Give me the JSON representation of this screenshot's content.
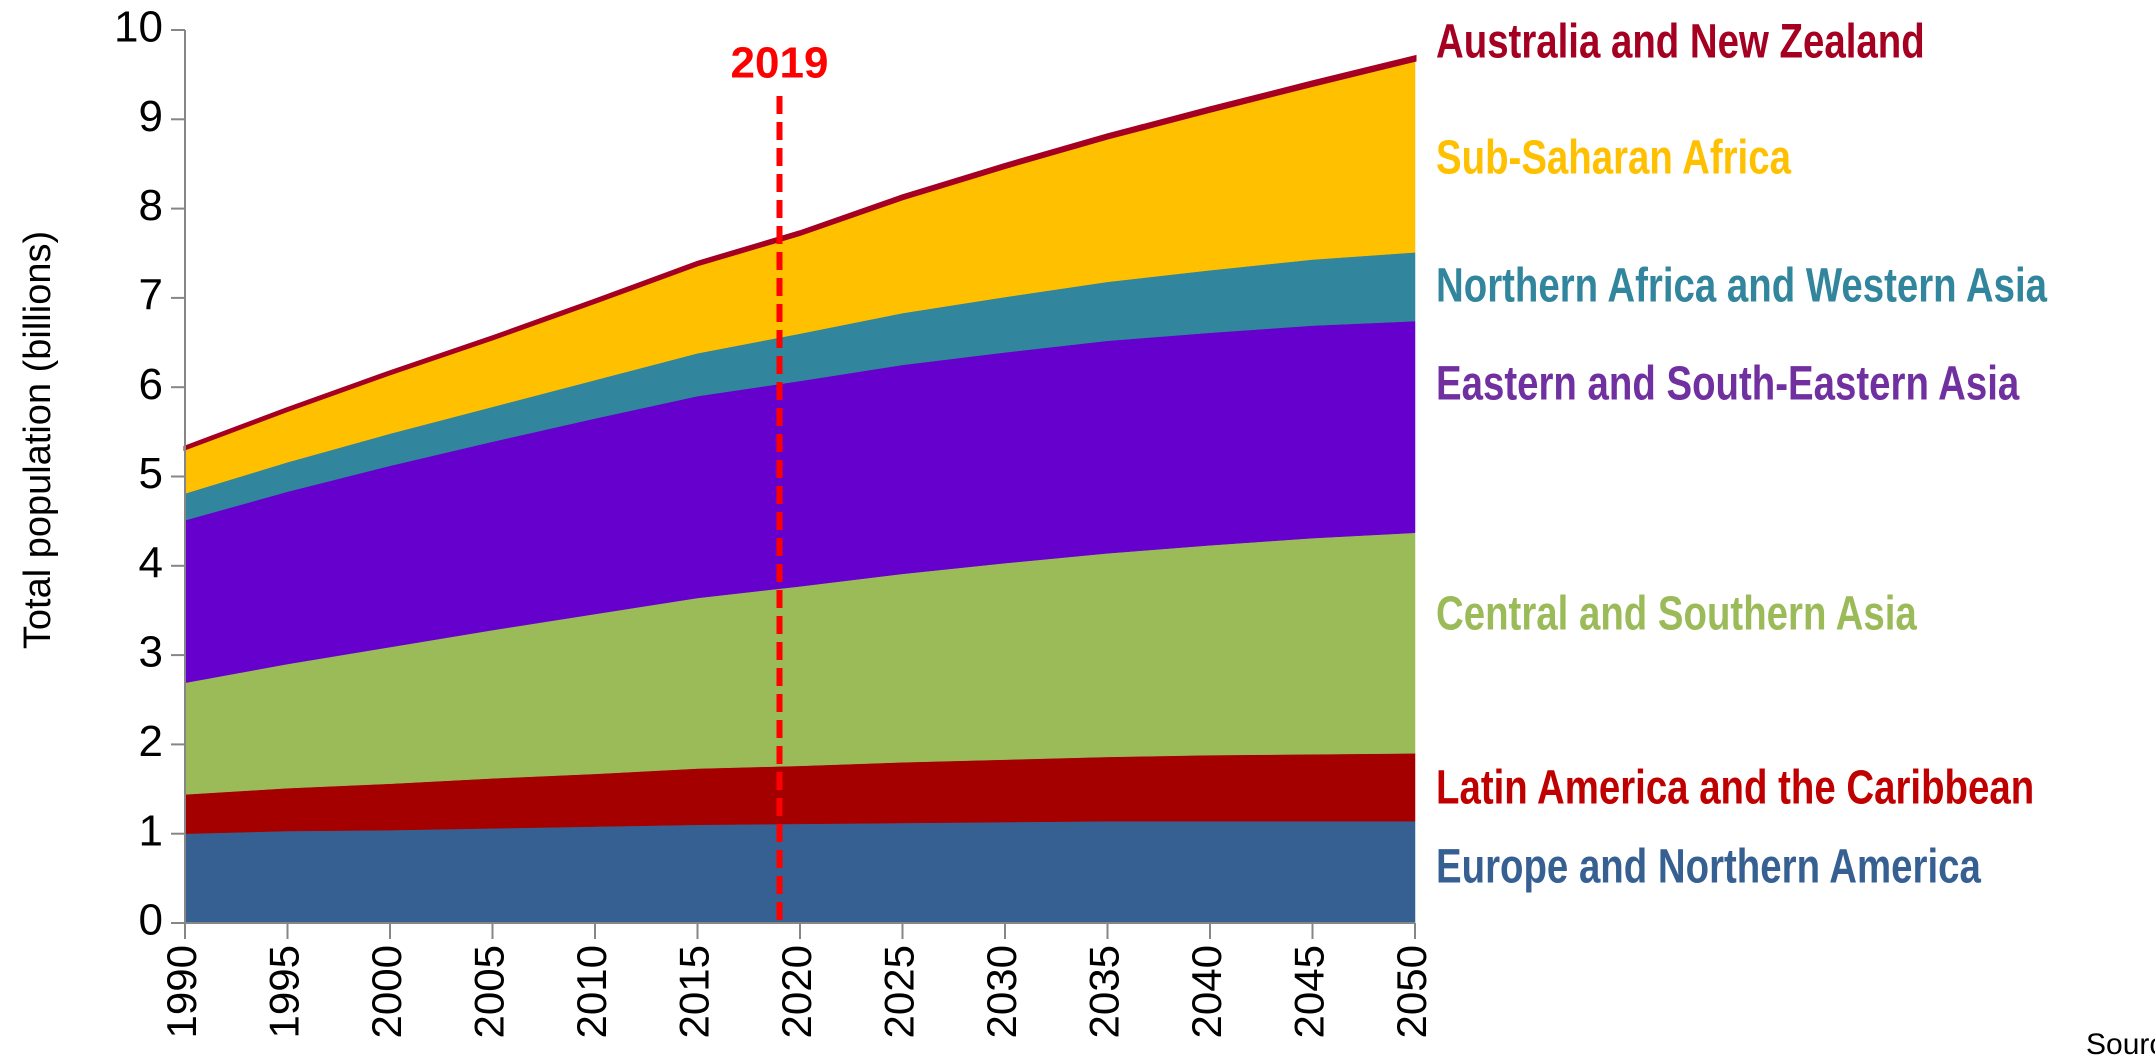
{
  "chart_data": {
    "type": "stacked_area",
    "y_label": "Total  population (billions)",
    "x": [
      1990,
      1995,
      2000,
      2005,
      2010,
      2015,
      2020,
      2025,
      2030,
      2035,
      2040,
      2045,
      2050
    ],
    "series": [
      {
        "name": "Europe and Northern America",
        "color": "#376092",
        "values": [
          1.0,
          1.03,
          1.04,
          1.06,
          1.08,
          1.1,
          1.11,
          1.12,
          1.13,
          1.14,
          1.14,
          1.14,
          1.14
        ]
      },
      {
        "name": "Latin America and the Caribbean",
        "color": "#a50000",
        "values": [
          0.44,
          0.48,
          0.52,
          0.56,
          0.59,
          0.63,
          0.65,
          0.68,
          0.7,
          0.72,
          0.74,
          0.75,
          0.76
        ]
      },
      {
        "name": "Central and Southern Asia",
        "color": "#9bbb59",
        "values": [
          1.25,
          1.39,
          1.53,
          1.66,
          1.79,
          1.91,
          2.01,
          2.11,
          2.2,
          2.28,
          2.35,
          2.42,
          2.47
        ]
      },
      {
        "name": "Eastern and South-Eastern Asia",
        "color": "#6600cc",
        "values": [
          1.82,
          1.93,
          2.03,
          2.11,
          2.19,
          2.26,
          2.3,
          2.34,
          2.36,
          2.38,
          2.38,
          2.38,
          2.37
        ]
      },
      {
        "name": "Northern Africa and Western Asia",
        "color": "#31859c",
        "values": [
          0.3,
          0.33,
          0.36,
          0.39,
          0.43,
          0.48,
          0.53,
          0.58,
          0.62,
          0.66,
          0.7,
          0.74,
          0.77
        ]
      },
      {
        "name": "Sub-Saharan Africa",
        "color": "#ffc000",
        "values": [
          0.5,
          0.58,
          0.67,
          0.76,
          0.87,
          0.99,
          1.11,
          1.28,
          1.45,
          1.61,
          1.78,
          1.95,
          2.15
        ]
      },
      {
        "name": "Australia and New Zealand",
        "color": "#a50021",
        "values": [
          0.02,
          0.021,
          0.023,
          0.024,
          0.026,
          0.029,
          0.031,
          0.033,
          0.035,
          0.036,
          0.038,
          0.039,
          0.04
        ]
      }
    ],
    "annotation": {
      "text": "2019",
      "x": 2019,
      "color": "#ff0000"
    },
    "source": "Sourc",
    "xlim": [
      1990,
      2050
    ],
    "xticks": [
      1990,
      1995,
      2000,
      2005,
      2010,
      2015,
      2020,
      2025,
      2030,
      2035,
      2040,
      2045,
      2050
    ],
    "ylim": [
      0,
      10
    ],
    "yticks": [
      0,
      1,
      2,
      3,
      4,
      5,
      6,
      7,
      8,
      9,
      10
    ]
  }
}
